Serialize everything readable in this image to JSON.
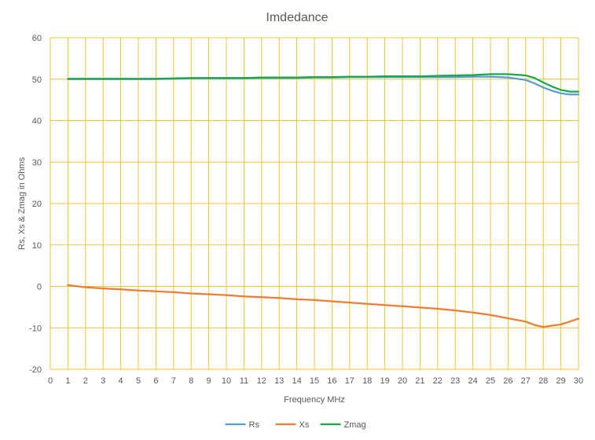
{
  "chart_data": {
    "type": "line",
    "title": "Imdedance",
    "xlabel": "Frequency MHz",
    "ylabel": "Rs, Xs & Zmag in Ohms",
    "xlim": [
      0,
      30
    ],
    "ylim": [
      -20,
      60
    ],
    "xticks": [
      0,
      1,
      2,
      3,
      4,
      5,
      6,
      7,
      8,
      9,
      10,
      11,
      12,
      13,
      14,
      15,
      16,
      17,
      18,
      19,
      20,
      21,
      22,
      23,
      24,
      25,
      26,
      27,
      28,
      29,
      30
    ],
    "yticks": [
      -20,
      -10,
      0,
      10,
      20,
      30,
      40,
      50,
      60
    ],
    "grid": true,
    "legend_position": "bottom",
    "colors": {
      "grid": "#f0c330",
      "axis": "#bfbfbf",
      "text": "#595959"
    },
    "series": [
      {
        "name": "Rs",
        "color": "#5b9bd5",
        "x": [
          1,
          2,
          3,
          4,
          5,
          6,
          7,
          8,
          9,
          10,
          11,
          12,
          13,
          14,
          15,
          16,
          17,
          18,
          19,
          20,
          21,
          22,
          23,
          24,
          25,
          26,
          27,
          27.5,
          28,
          28.5,
          29,
          29.5,
          30
        ],
        "y": [
          50.0,
          50.0,
          50.0,
          50.0,
          50.0,
          50.0,
          50.1,
          50.2,
          50.2,
          50.2,
          50.2,
          50.3,
          50.3,
          50.3,
          50.4,
          50.4,
          50.5,
          50.5,
          50.5,
          50.5,
          50.5,
          50.5,
          50.5,
          50.6,
          50.6,
          50.4,
          49.8,
          49.0,
          48.0,
          47.2,
          46.6,
          46.3,
          46.3
        ]
      },
      {
        "name": "Xs",
        "color": "#ed7d31",
        "x": [
          1,
          2,
          3,
          4,
          5,
          6,
          7,
          8,
          9,
          10,
          11,
          12,
          13,
          14,
          15,
          16,
          17,
          18,
          19,
          20,
          21,
          22,
          23,
          24,
          25,
          26,
          27,
          27.5,
          28,
          28.3,
          28.6,
          29,
          29.5,
          30
        ],
        "y": [
          0.3,
          -0.2,
          -0.5,
          -0.7,
          -1.0,
          -1.2,
          -1.4,
          -1.7,
          -1.9,
          -2.1,
          -2.4,
          -2.6,
          -2.8,
          -3.1,
          -3.3,
          -3.6,
          -3.9,
          -4.2,
          -4.5,
          -4.8,
          -5.1,
          -5.4,
          -5.8,
          -6.3,
          -6.9,
          -7.7,
          -8.5,
          -9.3,
          -9.8,
          -9.6,
          -9.4,
          -9.2,
          -8.5,
          -7.8
        ]
      },
      {
        "name": "Zmag",
        "color": "#1aa84a",
        "x": [
          1,
          2,
          3,
          4,
          5,
          6,
          7,
          8,
          9,
          10,
          11,
          12,
          13,
          14,
          15,
          16,
          17,
          18,
          19,
          20,
          21,
          22,
          23,
          24,
          25,
          26,
          27,
          27.5,
          28,
          28.5,
          29,
          29.5,
          30
        ],
        "y": [
          50.1,
          50.1,
          50.1,
          50.1,
          50.1,
          50.1,
          50.2,
          50.3,
          50.3,
          50.3,
          50.3,
          50.4,
          50.4,
          50.4,
          50.5,
          50.5,
          50.6,
          50.6,
          50.7,
          50.7,
          50.7,
          50.8,
          50.9,
          51.0,
          51.2,
          51.2,
          50.9,
          50.3,
          49.2,
          48.2,
          47.4,
          47.0,
          47.0
        ]
      }
    ]
  }
}
